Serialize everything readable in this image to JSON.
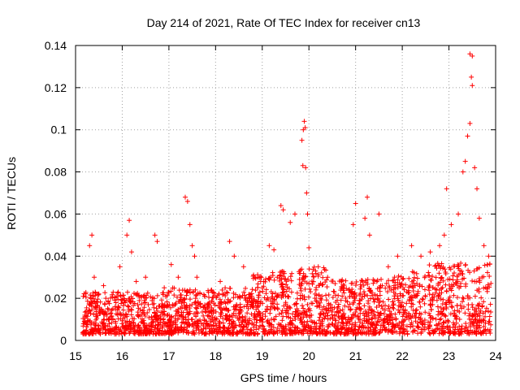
{
  "chart_data": {
    "type": "scatter",
    "title": "Day 214 of 2021, Rate Of TEC Index for receiver cn13",
    "xlabel": "GPS time / hours",
    "ylabel": "ROTI / TECUs",
    "xlim": [
      15,
      24
    ],
    "ylim": [
      0,
      0.14
    ],
    "x_ticks": [
      "15",
      "16",
      "17",
      "18",
      "19",
      "20",
      "21",
      "22",
      "23",
      "24"
    ],
    "y_ticks": [
      "0",
      "0.02",
      "0.04",
      "0.06",
      "0.08",
      "0.1",
      "0.12",
      "0.14"
    ],
    "grid": true,
    "marker": "+",
    "color": "#ff0000",
    "series": [
      {
        "name": "ROTI",
        "note": "dense cloud of points between 0.002 and ~0.03, peaks listed below",
        "points": [
          [
            15.2,
            0.012
          ],
          [
            15.3,
            0.045
          ],
          [
            15.35,
            0.05
          ],
          [
            15.4,
            0.03
          ],
          [
            15.5,
            0.022
          ],
          [
            15.6,
            0.026
          ],
          [
            15.8,
            0.015
          ],
          [
            15.95,
            0.035
          ],
          [
            16.1,
            0.05
          ],
          [
            16.15,
            0.057
          ],
          [
            16.2,
            0.042
          ],
          [
            16.3,
            0.028
          ],
          [
            16.5,
            0.03
          ],
          [
            16.7,
            0.05
          ],
          [
            16.75,
            0.047
          ],
          [
            16.9,
            0.025
          ],
          [
            17.05,
            0.036
          ],
          [
            17.2,
            0.03
          ],
          [
            17.35,
            0.068
          ],
          [
            17.4,
            0.066
          ],
          [
            17.45,
            0.055
          ],
          [
            17.5,
            0.045
          ],
          [
            17.55,
            0.04
          ],
          [
            17.6,
            0.03
          ],
          [
            18.1,
            0.028
          ],
          [
            18.3,
            0.047
          ],
          [
            18.4,
            0.04
          ],
          [
            18.6,
            0.035
          ],
          [
            18.9,
            0.03
          ],
          [
            19.15,
            0.045
          ],
          [
            19.25,
            0.043
          ],
          [
            19.4,
            0.064
          ],
          [
            19.45,
            0.062
          ],
          [
            19.6,
            0.056
          ],
          [
            19.7,
            0.06
          ],
          [
            19.85,
            0.095
          ],
          [
            19.88,
            0.1
          ],
          [
            19.9,
            0.104
          ],
          [
            19.92,
            0.101
          ],
          [
            19.87,
            0.083
          ],
          [
            19.93,
            0.082
          ],
          [
            19.95,
            0.07
          ],
          [
            19.97,
            0.06
          ],
          [
            20.0,
            0.044
          ],
          [
            20.2,
            0.035
          ],
          [
            20.4,
            0.03
          ],
          [
            20.7,
            0.028
          ],
          [
            20.95,
            0.055
          ],
          [
            21.0,
            0.065
          ],
          [
            21.2,
            0.058
          ],
          [
            21.25,
            0.068
          ],
          [
            21.3,
            0.05
          ],
          [
            21.5,
            0.06
          ],
          [
            21.7,
            0.035
          ],
          [
            21.9,
            0.04
          ],
          [
            22.2,
            0.045
          ],
          [
            22.4,
            0.04
          ],
          [
            22.6,
            0.042
          ],
          [
            22.8,
            0.045
          ],
          [
            22.9,
            0.05
          ],
          [
            22.95,
            0.072
          ],
          [
            23.05,
            0.055
          ],
          [
            23.2,
            0.06
          ],
          [
            23.3,
            0.08
          ],
          [
            23.35,
            0.085
          ],
          [
            23.4,
            0.097
          ],
          [
            23.45,
            0.103
          ],
          [
            23.5,
            0.121
          ],
          [
            23.48,
            0.125
          ],
          [
            23.45,
            0.136
          ],
          [
            23.5,
            0.135
          ],
          [
            23.55,
            0.082
          ],
          [
            23.6,
            0.072
          ],
          [
            23.65,
            0.058
          ],
          [
            23.75,
            0.045
          ],
          [
            23.85,
            0.04
          ]
        ]
      }
    ]
  }
}
